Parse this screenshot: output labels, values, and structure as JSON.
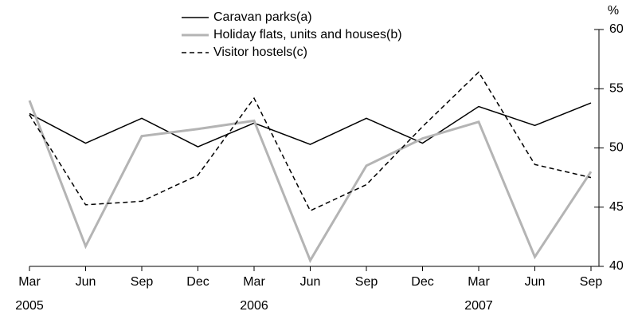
{
  "chart_data": {
    "type": "line",
    "y_unit": "%",
    "categories": [
      "Mar",
      "Jun",
      "Sep",
      "Dec",
      "Mar",
      "Jun",
      "Sep",
      "Dec",
      "Mar",
      "Jun",
      "Sep"
    ],
    "years": [
      "2005",
      null,
      null,
      null,
      "2006",
      null,
      null,
      null,
      "2007",
      null,
      null
    ],
    "series": [
      {
        "name": "Caravan parks(a)",
        "color": "#000000",
        "width": 1.5,
        "dash": false,
        "values": [
          52.9,
          50.4,
          52.5,
          50.1,
          52.1,
          50.3,
          52.5,
          50.4,
          53.5,
          51.9,
          53.8
        ]
      },
      {
        "name": "Holiday flats, units and houses(b)",
        "color": "#b4b4b4",
        "width": 3,
        "dash": false,
        "values": [
          54.0,
          41.7,
          51.0,
          51.6,
          52.3,
          40.5,
          48.5,
          50.8,
          52.2,
          40.8,
          48.0
        ]
      },
      {
        "name": "Visitor hostels(c)",
        "color": "#000000",
        "width": 1.5,
        "dash": true,
        "values": [
          52.8,
          45.2,
          45.5,
          47.7,
          54.2,
          44.7,
          46.9,
          51.8,
          56.4,
          48.6,
          47.5
        ]
      }
    ],
    "ylim": [
      40,
      60
    ],
    "yticks": [
      40,
      45,
      50,
      55,
      60
    ]
  }
}
